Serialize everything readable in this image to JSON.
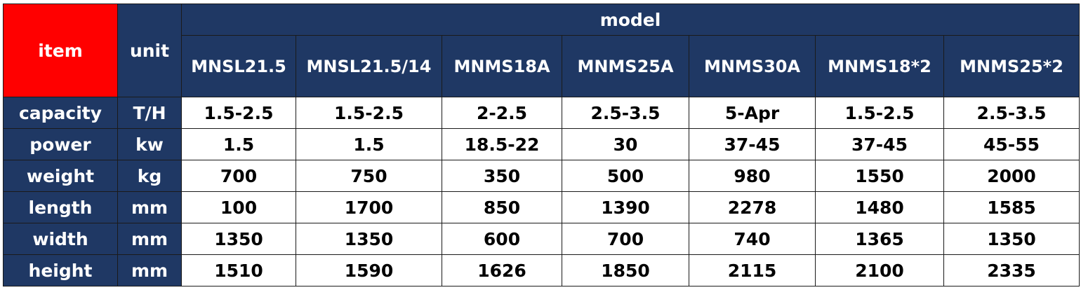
{
  "table": {
    "header": {
      "item": "item",
      "unit": "unit",
      "group": "model",
      "models": [
        "MNSL21.5",
        "MNSL21.5/14",
        "MNMS18A",
        "MNMS25A",
        "MNMS30A",
        "MNMS18*2",
        "MNMS25*2"
      ]
    },
    "rows": [
      {
        "label": "capacity",
        "unit": "T/H",
        "values": [
          "1.5-2.5",
          "1.5-2.5",
          "2-2.5",
          "2.5-3.5",
          "5-Apr",
          "1.5-2.5",
          "2.5-3.5"
        ]
      },
      {
        "label": "power",
        "unit": "kw",
        "values": [
          "1.5",
          "1.5",
          "18.5-22",
          "30",
          "37-45",
          "37-45",
          "45-55"
        ]
      },
      {
        "label": "weight",
        "unit": "kg",
        "values": [
          "700",
          "750",
          "350",
          "500",
          "980",
          "1550",
          "2000"
        ]
      },
      {
        "label": "length",
        "unit": "mm",
        "values": [
          "100",
          "1700",
          "850",
          "1390",
          "2278",
          "1480",
          "1585"
        ]
      },
      {
        "label": "width",
        "unit": "mm",
        "values": [
          "1350",
          "1350",
          "600",
          "700",
          "740",
          "1365",
          "1350"
        ]
      },
      {
        "label": "height",
        "unit": "mm",
        "values": [
          "1510",
          "1590",
          "1626",
          "1850",
          "2115",
          "2100",
          "2335"
        ]
      }
    ]
  }
}
